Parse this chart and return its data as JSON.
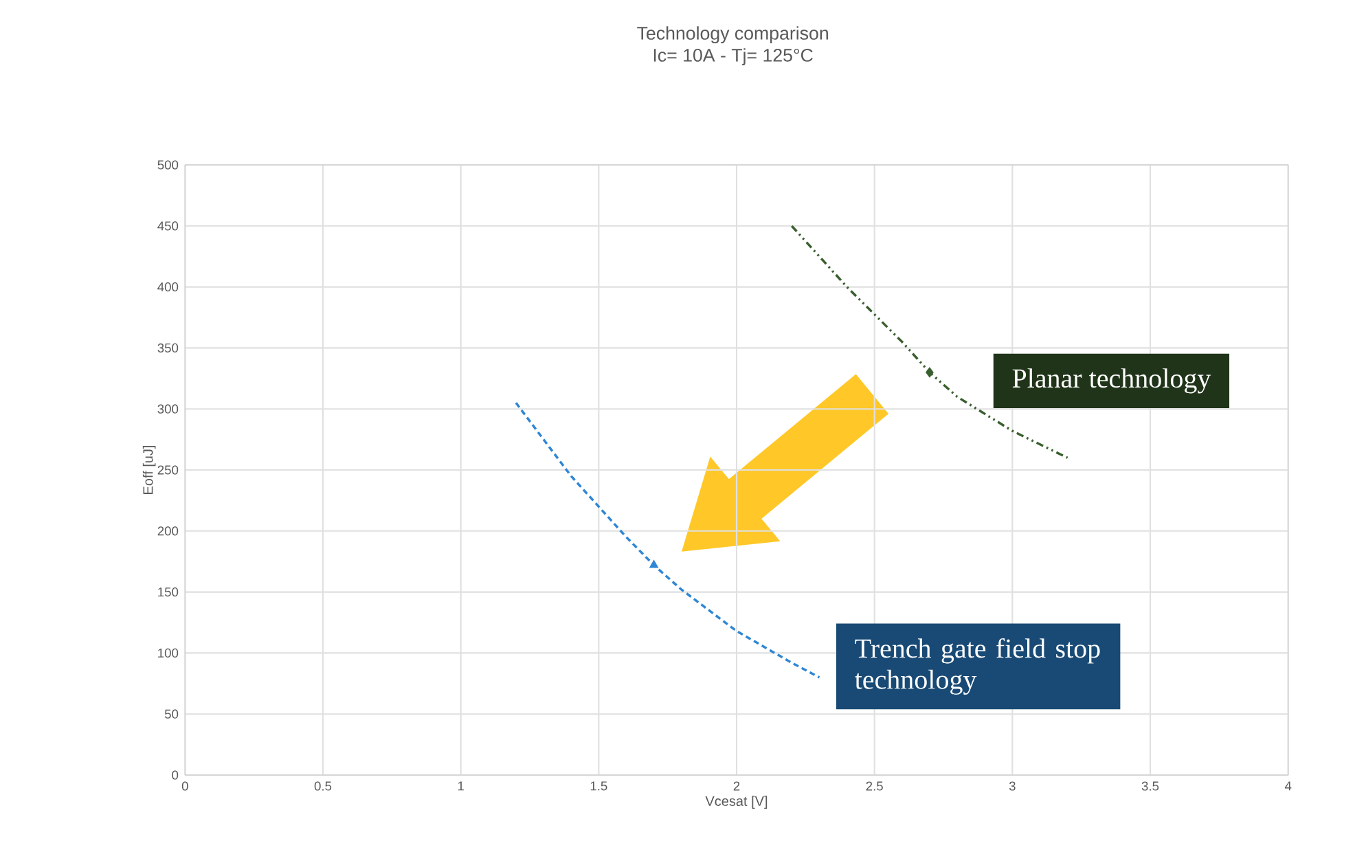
{
  "chart_data": {
    "type": "line",
    "title": "Technology comparison",
    "subtitle": "Ic= 10A - Tj= 125°C",
    "xlabel": "Vcesat [V]",
    "ylabel": "Eoff [uJ]",
    "xlim": [
      0,
      4
    ],
    "xticks": [
      0,
      0.5,
      1,
      1.5,
      2,
      2.5,
      3,
      3.5,
      4
    ],
    "ylim": [
      0,
      500
    ],
    "yticks": [
      0,
      50,
      100,
      150,
      200,
      250,
      300,
      350,
      400,
      450,
      500
    ],
    "grid": true,
    "series": [
      {
        "name": "Trench gate field stop technology",
        "color": "#2e86d4",
        "line_style": "dashed",
        "x": [
          1.2,
          1.4,
          1.6,
          1.7,
          1.8,
          2.0,
          2.2,
          2.3
        ],
        "values": [
          305,
          245,
          195,
          172,
          152,
          118,
          92,
          80
        ]
      },
      {
        "name": "Planar technology",
        "color": "#3a5f2e",
        "line_style": "dashdotdot",
        "x": [
          2.2,
          2.4,
          2.6,
          2.7,
          2.8,
          3.0,
          3.2
        ],
        "values": [
          450,
          400,
          355,
          330,
          310,
          282,
          260
        ]
      },
      {
        "type": "scatter",
        "color": "#2e86d4",
        "marker": "triangle",
        "x": [
          1.7
        ],
        "values": [
          172
        ]
      },
      {
        "type": "scatter",
        "color": "#3a5f2e",
        "marker": "diamond",
        "x": [
          2.7
        ],
        "values": [
          330
        ]
      }
    ]
  }
}
